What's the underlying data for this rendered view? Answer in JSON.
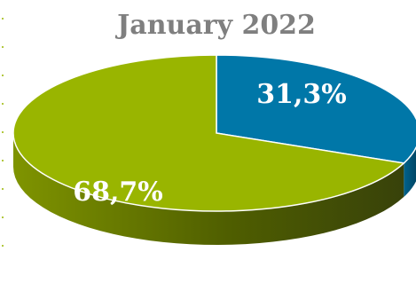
{
  "chart_data": {
    "type": "pie",
    "title": "January 2022",
    "slices": [
      {
        "label": "31,3%",
        "value": 31.3,
        "color": "#0077a8",
        "side_color": "#005a80"
      },
      {
        "label": "68,7%",
        "value": 68.7,
        "color": "#99b500",
        "side_color": "#5c6e00"
      }
    ],
    "style": "3d",
    "legend": "none"
  }
}
